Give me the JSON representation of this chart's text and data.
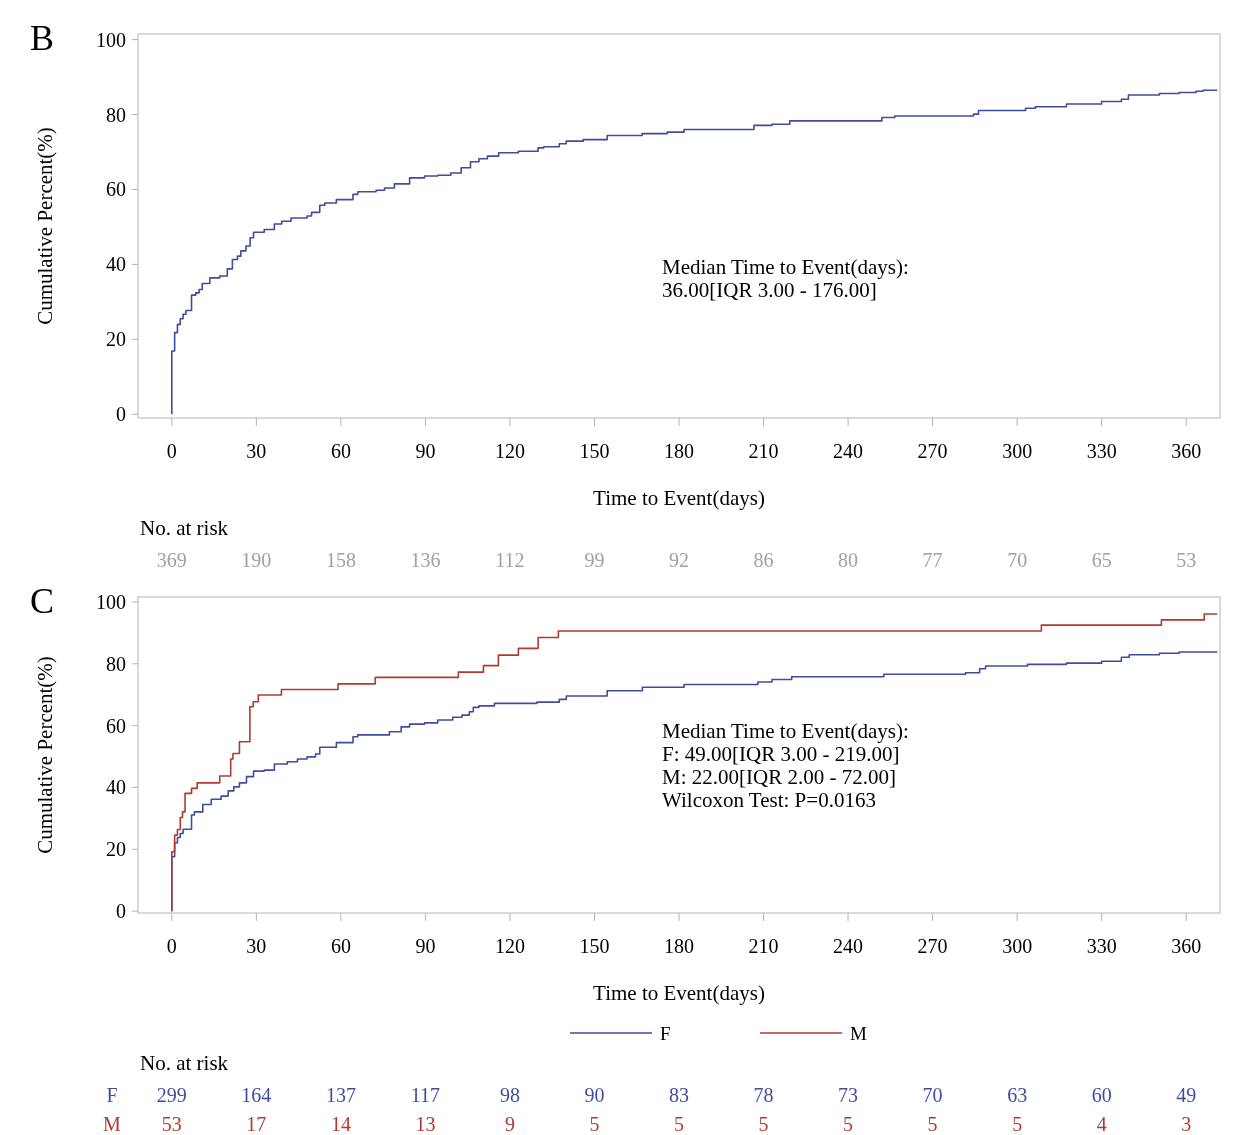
{
  "chart_data": [
    {
      "type": "step",
      "title": "B",
      "xlabel": "Time to Event(days)",
      "ylabel": "Cumulative Percent(%)",
      "xlim": [
        -12,
        372
      ],
      "ylim": [
        -1,
        101.5
      ],
      "xticks": [
        0,
        30,
        60,
        90,
        120,
        150,
        180,
        210,
        240,
        270,
        300,
        330,
        360
      ],
      "yticks": [
        0,
        20,
        40,
        60,
        80,
        100
      ],
      "grid": false,
      "legend": false,
      "series": [
        {
          "color": "#3f4d9c",
          "x": [
            0,
            0,
            1,
            2,
            3,
            4,
            5,
            7,
            8.5,
            9.7,
            10.8,
            13.5,
            17,
            19.7,
            21.5,
            23.3,
            24.5,
            26.3,
            27.8,
            29,
            32.8,
            36.4,
            39,
            42.3,
            48,
            49.6,
            52.5,
            54.3,
            58.4,
            64.3,
            66,
            72.5,
            75.5,
            79,
            84.4,
            89.7,
            94.4,
            99,
            102.7,
            106,
            109,
            112,
            116,
            123,
            130,
            132,
            137.5,
            140,
            146,
            154.5,
            166.9,
            175.8,
            181.8,
            206.6,
            213,
            219.3,
            252,
            256.6,
            284.5,
            286.3,
            303,
            306.5,
            317.5,
            330,
            337,
            339.5,
            350.5,
            357.5,
            363.5,
            366,
            371
          ],
          "values": [
            0,
            16.9,
            21.8,
            24,
            25.5,
            26.7,
            27.7,
            31.8,
            32.4,
            33.3,
            34.9,
            36.4,
            36.9,
            38.8,
            41.3,
            42.2,
            43.6,
            44.9,
            47.1,
            48.6,
            49.3,
            50.8,
            51.5,
            52.4,
            52.9,
            53.9,
            55.8,
            56.4,
            57.3,
            58.7,
            59.4,
            59.8,
            60.4,
            61.5,
            63.1,
            63.6,
            63.8,
            64.4,
            65.8,
            67.4,
            68.2,
            68.9,
            69.8,
            70.2,
            71.1,
            71.4,
            72.2,
            72.9,
            73.3,
            74.4,
            74.9,
            75.3,
            76,
            77.1,
            77.4,
            78.3,
            79.2,
            79.6,
            80.1,
            81.1,
            81.7,
            82.1,
            82.8,
            83.5,
            84.1,
            85.2,
            85.6,
            85.9,
            86.2,
            86.5,
            86.5
          ]
        }
      ],
      "annotations": [
        "Median Time to Event(days):",
        "36.00[IQR 3.00 - 176.00]",
        "No. at risk",
        "369",
        "190",
        "158",
        "136",
        "112",
        "99",
        "92",
        "86",
        "80",
        "77",
        "70",
        "65",
        "53"
      ]
    },
    {
      "type": "step",
      "title": "C",
      "xlabel": "Time to Event(days)",
      "ylabel": "Cumulative Percent(%)",
      "xlim": [
        -12,
        372
      ],
      "ylim": [
        -0.6,
        101.6
      ],
      "xticks": [
        0,
        30,
        60,
        90,
        120,
        150,
        180,
        210,
        240,
        270,
        300,
        330,
        360
      ],
      "yticks": [
        0,
        20,
        40,
        60,
        80,
        100
      ],
      "grid": false,
      "legend": "bottom",
      "series": [
        {
          "name": "F",
          "color": "#3f4d9c",
          "x": [
            0,
            0,
            1,
            2,
            3,
            4,
            7,
            8,
            11,
            14,
            17.5,
            20,
            22,
            24,
            26.5,
            29,
            32.8,
            36.4,
            41,
            44.6,
            48,
            51,
            52.5,
            58.4,
            64.3,
            66,
            77.2,
            81.4,
            84.4,
            89.7,
            94.4,
            99.7,
            103,
            105.6,
            107,
            109,
            114.5,
            129.6,
            137.5,
            140,
            154.5,
            167,
            181.8,
            208,
            213,
            220,
            252.7,
            281.7,
            286.7,
            288.8,
            303.7,
            317.5,
            330,
            337,
            339.8,
            350.5,
            357.5,
            371
          ],
          "values": [
            0,
            17.6,
            22.1,
            23.8,
            25.1,
            26.5,
            31.1,
            32.1,
            34.5,
            36.2,
            37.2,
            38.9,
            40.2,
            41.5,
            43.5,
            45.3,
            45.6,
            47.6,
            48.3,
            49.2,
            49.9,
            50.8,
            53,
            54.5,
            56.4,
            57,
            58,
            59.6,
            60.5,
            60.9,
            61.8,
            62.7,
            63.4,
            64.5,
            65.9,
            66.4,
            67.2,
            67.6,
            68.5,
            69.6,
            71.3,
            72.4,
            73.3,
            74.1,
            74.9,
            75.8,
            76.6,
            77.1,
            78.4,
            79.3,
            79.8,
            80.2,
            80.8,
            82.1,
            82.9,
            83.4,
            83.8,
            83.8
          ]
        },
        {
          "name": "M",
          "color": "#b03a2e",
          "x": [
            0,
            0,
            1,
            2,
            3,
            3.8,
            4.7,
            7,
            9,
            17,
            20.9,
            21.7,
            24,
            27.7,
            28.9,
            30.7,
            38.9,
            59,
            72.2,
            101.7,
            110.6,
            115.9,
            123,
            130,
            137.2,
            308.6,
            351.2,
            366.4,
            371
          ],
          "values": [
            0,
            19.2,
            24.6,
            26.4,
            30.3,
            32.1,
            38.1,
            39.7,
            41.5,
            43.7,
            49.2,
            51,
            54.8,
            66.1,
            67.7,
            69.9,
            71.7,
            73.5,
            75.6,
            77.3,
            79.4,
            82.8,
            85,
            88.5,
            90.6,
            92.5,
            94.2,
            96.1,
            96.1
          ]
        }
      ],
      "annotations": [
        "Median Time to Event(days):",
        "F:  49.00[IQR 3.00 - 219.00]",
        "M:  22.00[IQR 2.00 - 72.00]",
        "Wilcoxon Test: P=0.0163",
        "No. at risk",
        "299",
        "164",
        "137",
        "117",
        "98",
        "90",
        "83",
        "78",
        "73",
        "70",
        "63",
        "60",
        "49",
        "53",
        "17",
        "14",
        "13",
        "9",
        "5",
        "5",
        "5",
        "5",
        "5",
        "5",
        "4",
        "3"
      ]
    }
  ]
}
